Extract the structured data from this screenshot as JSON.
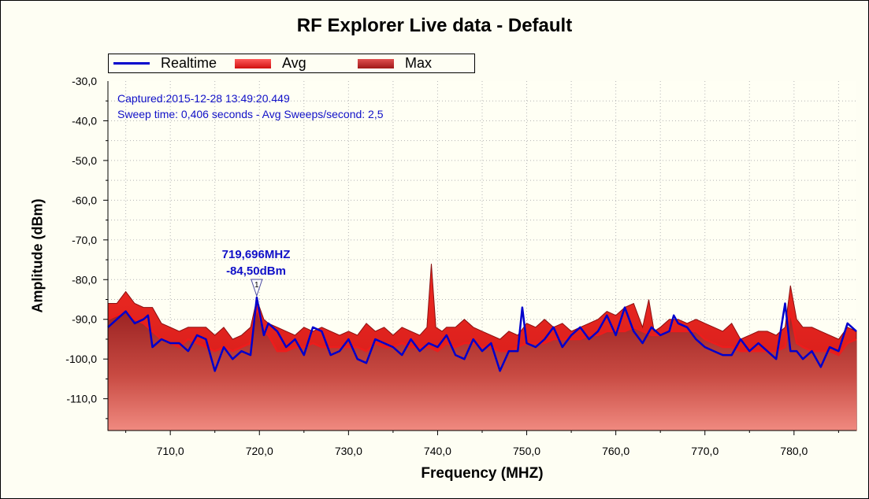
{
  "title": "RF Explorer Live data - Default",
  "legend": {
    "items": [
      {
        "label": "Realtime",
        "color": "#0000cc",
        "kind": "line"
      },
      {
        "label": "Avg",
        "color": "#ee1c1c",
        "kind": "band"
      },
      {
        "label": "Max",
        "color": "#c0201e",
        "kind": "band"
      }
    ]
  },
  "info": {
    "captured": "Captured:2015-12-28 13:49:20.449",
    "sweep": "Sweep time: 0,406 seconds - Avg Sweeps/second: 2,5"
  },
  "marker": {
    "id": "1",
    "freq_label": "719,696MHZ",
    "amp_label": "-84,50dBm",
    "x": 719.696,
    "y": -84.5
  },
  "colors": {
    "realtime": "#0000cc",
    "avg": "#ee1c1c",
    "max": "#b41e1a",
    "grid": "#b4b4b4",
    "plot_bg": "#fffff4"
  },
  "chart_data": {
    "type": "line",
    "title": "RF Explorer Live data - Default",
    "xlabel": "Frequency (MHZ)",
    "ylabel": "Amplitude (dBm)",
    "xlim": [
      703.0,
      787.0
    ],
    "ylim": [
      -118,
      -30
    ],
    "x_ticks": [
      710,
      720,
      730,
      740,
      750,
      760,
      770,
      780
    ],
    "x_tick_labels": [
      "710,0",
      "720,0",
      "730,0",
      "740,0",
      "750,0",
      "760,0",
      "770,0",
      "780,0"
    ],
    "y_ticks": [
      -110,
      -100,
      -90,
      -80,
      -70,
      -60,
      -50,
      -40,
      -30
    ],
    "y_tick_labels": [
      "-110,0",
      "-100,0",
      "-90,0",
      "-80,0",
      "-70,0",
      "-60,0",
      "-50,0",
      "-40,0",
      "-30,0"
    ],
    "grid": true,
    "legend_position": "top-left",
    "series": [
      {
        "name": "Max",
        "x": [
          703,
          704,
          705,
          706,
          707,
          708,
          709,
          710,
          711,
          712,
          713,
          714,
          715,
          716,
          717,
          718,
          719,
          719.7,
          720.5,
          721,
          722,
          723,
          724,
          725,
          726,
          727,
          728,
          729,
          730,
          731,
          732,
          733,
          734,
          735,
          736,
          737,
          738,
          738.8,
          739.3,
          739.8,
          740.5,
          741,
          742,
          743,
          744,
          745,
          746,
          747,
          748,
          749,
          750,
          751,
          752,
          753,
          754,
          755,
          756,
          757,
          758,
          759,
          760,
          761,
          762,
          763,
          763.7,
          764.3,
          765,
          766,
          767,
          768,
          769,
          770,
          771,
          772,
          773,
          774,
          775,
          776,
          777,
          778,
          779,
          779.6,
          780.3,
          781,
          782,
          783,
          784,
          785,
          786,
          787
        ],
        "y": [
          -86,
          -86,
          -83,
          -86,
          -87,
          -87,
          -91,
          -92,
          -93,
          -92,
          -92,
          -92,
          -94,
          -92,
          -95,
          -94,
          -92,
          -85,
          -90,
          -91,
          -92,
          -93,
          -94,
          -92,
          -93,
          -92,
          -93,
          -94,
          -93,
          -94,
          -91,
          -93,
          -92,
          -94,
          -92,
          -93,
          -94,
          -92,
          -76,
          -92,
          -93,
          -92,
          -92,
          -90,
          -92,
          -93,
          -94,
          -95,
          -93,
          -94,
          -91,
          -92,
          -90,
          -92,
          -91,
          -93,
          -92,
          -91,
          -90,
          -88,
          -89,
          -87,
          -86,
          -92,
          -85,
          -93,
          -92,
          -90,
          -90,
          -91,
          -90,
          -91,
          -92,
          -93,
          -91,
          -95,
          -94,
          -93,
          -93,
          -94,
          -92,
          -81.5,
          -90,
          -92,
          -92,
          -93,
          -94,
          -95,
          -92,
          -93
        ]
      },
      {
        "name": "Avg",
        "x": [
          703,
          704,
          705,
          706,
          707,
          708,
          709,
          710,
          711,
          712,
          713,
          714,
          715,
          716,
          717,
          718,
          719,
          719.7,
          720.5,
          721,
          722,
          723,
          724,
          725,
          726,
          727,
          728,
          729,
          730,
          731,
          732,
          733,
          734,
          735,
          736,
          737,
          738,
          739,
          740,
          741,
          742,
          743,
          744,
          745,
          746,
          747,
          748,
          749,
          750,
          751,
          752,
          753,
          754,
          755,
          756,
          757,
          758,
          759,
          760,
          761,
          762,
          763,
          764,
          765,
          766,
          767,
          768,
          769,
          770,
          771,
          772,
          773,
          774,
          775,
          776,
          777,
          778,
          779,
          779.6,
          780.3,
          781,
          782,
          783,
          784,
          785,
          786,
          787
        ],
        "y": [
          -90,
          -89,
          -88,
          -90,
          -91,
          -93,
          -95,
          -96,
          -97,
          -95,
          -96,
          -97,
          -98,
          -97,
          -98,
          -97,
          -96,
          -87,
          -93,
          -94,
          -98,
          -98,
          -97,
          -97,
          -96,
          -97,
          -97,
          -97,
          -97,
          -97,
          -98,
          -96,
          -97,
          -97,
          -96,
          -97,
          -97,
          -97,
          -98,
          -96,
          -97,
          -96,
          -96,
          -97,
          -97,
          -98,
          -98,
          -97,
          -96,
          -96,
          -96,
          -95,
          -95,
          -95,
          -95,
          -94,
          -94,
          -93,
          -93,
          -93,
          -92,
          -93,
          -94,
          -94,
          -93,
          -93,
          -93,
          -93,
          -95,
          -96,
          -97,
          -97,
          -98,
          -98,
          -98,
          -98,
          -98,
          -97,
          -88,
          -96,
          -97,
          -98,
          -98,
          -98,
          -99,
          -96,
          -95
        ]
      },
      {
        "name": "Realtime",
        "x": [
          703,
          704,
          705,
          706,
          707,
          707.5,
          708,
          709,
          710,
          711,
          712,
          713,
          714,
          715,
          716,
          717,
          718,
          719,
          719.7,
          720.5,
          721,
          722,
          723,
          724,
          725,
          726,
          727,
          728,
          729,
          730,
          731,
          732,
          733,
          734,
          735,
          736,
          737,
          738,
          739,
          740,
          741,
          742,
          743,
          744,
          745,
          746,
          747,
          748,
          749,
          749.5,
          750,
          751,
          752,
          753,
          754,
          755,
          756,
          757,
          758,
          759,
          760,
          761,
          762,
          763,
          764,
          765,
          766,
          766.5,
          767,
          768,
          769,
          770,
          771,
          772,
          773,
          774,
          775,
          776,
          777,
          778,
          779,
          779.6,
          780.3,
          781,
          782,
          783,
          784,
          785,
          786,
          787
        ],
        "y": [
          -92,
          -90,
          -88,
          -91,
          -90,
          -89,
          -97,
          -95,
          -96,
          -96,
          -98,
          -94,
          -95,
          -103,
          -97,
          -100,
          -98,
          -99,
          -84.5,
          -94,
          -91,
          -93,
          -97,
          -95,
          -99,
          -92,
          -93,
          -99,
          -98,
          -95,
          -100,
          -101,
          -95,
          -96,
          -97,
          -99,
          -95,
          -98,
          -96,
          -97,
          -94,
          -99,
          -100,
          -95,
          -98,
          -96,
          -103,
          -98,
          -98,
          -87,
          -96,
          -97,
          -95,
          -92,
          -97,
          -94,
          -92,
          -95,
          -93,
          -89,
          -94,
          -87,
          -93,
          -96,
          -92,
          -94,
          -93,
          -89,
          -91,
          -92,
          -95,
          -97,
          -98,
          -99,
          -99,
          -95,
          -98,
          -96,
          -98,
          -100,
          -86,
          -98,
          -98,
          -100,
          -98,
          -102,
          -97,
          -98,
          -91,
          -93
        ]
      }
    ]
  }
}
